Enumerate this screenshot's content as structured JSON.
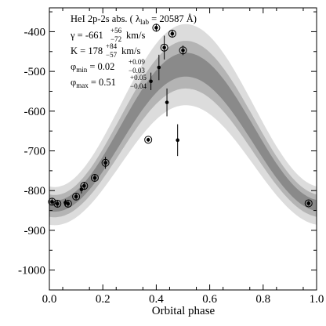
{
  "chart_data": {
    "type": "scatter",
    "xlabel": "Orbital phase",
    "ylabel": "",
    "xlim": [
      0.0,
      1.0
    ],
    "ylim": [
      -1050,
      -340
    ],
    "x_ticks": [
      0.0,
      0.2,
      0.4,
      0.6,
      0.8,
      1.0
    ],
    "x_tick_labels": [
      "0.0",
      "0.2",
      "0.4",
      "0.6",
      "0.8",
      "1.0"
    ],
    "y_ticks": [
      -400,
      -500,
      -600,
      -700,
      -800,
      -900,
      -1000
    ],
    "y_tick_labels": [
      "-400",
      "-500",
      "-600",
      "-700",
      "-800",
      "-900",
      "-1000"
    ],
    "grid": false,
    "annotation": {
      "line1": {
        "main": "HeI 2p-2s abs. ( λ",
        "sub": "lab",
        "rest": " = 20587 Å)"
      },
      "line2": {
        "main": "γ = -661",
        "sup": "+56",
        "sub": "−72",
        "rest": " km/s"
      },
      "line3": {
        "main": "K = 178",
        "sup": "+84",
        "sub": "−57",
        "rest": " km/s"
      },
      "line4": {
        "main": "φ",
        "msub": "min",
        "eq": " = 0.02",
        "sup": "+0.09",
        "sub": "−0.03"
      },
      "line5": {
        "main": "φ",
        "msub": "max",
        "eq": " = 0.51",
        "sup": "+0.05",
        "sub": "−0.04"
      }
    },
    "model": {
      "gamma": -661,
      "K": 178,
      "phi_min": 0.02,
      "phi_max": 0.51,
      "bands": [
        {
          "level": "outer",
          "color": "#dcdcdc",
          "half_width": [
            102,
            48
          ]
        },
        {
          "level": "middle",
          "color": "#b4b4b4",
          "half_width": [
            60,
            28
          ]
        },
        {
          "level": "inner",
          "color": "#8a8a8a",
          "half_width": [
            30,
            14
          ]
        }
      ]
    },
    "points": [
      {
        "x": 0.01,
        "y": -828,
        "err": 8,
        "ring": true
      },
      {
        "x": 0.03,
        "y": -833,
        "err": 8,
        "ring": true
      },
      {
        "x": 0.06,
        "y": -830,
        "err": 8,
        "ring": false
      },
      {
        "x": 0.07,
        "y": -833,
        "err": 8,
        "ring": true
      },
      {
        "x": 0.1,
        "y": -815,
        "err": 8,
        "ring": true
      },
      {
        "x": 0.12,
        "y": -797,
        "err": 10,
        "ring": false
      },
      {
        "x": 0.13,
        "y": -788,
        "err": 10,
        "ring": true
      },
      {
        "x": 0.17,
        "y": -768,
        "err": 8,
        "ring": true
      },
      {
        "x": 0.21,
        "y": -730,
        "err": 15,
        "ring": true
      },
      {
        "x": 0.37,
        "y": -672,
        "err": 5,
        "ring": true
      },
      {
        "x": 0.38,
        "y": -525,
        "err": 22,
        "ring": false
      },
      {
        "x": 0.4,
        "y": -390,
        "err": 10,
        "ring": true
      },
      {
        "x": 0.41,
        "y": -490,
        "err": 32,
        "ring": false
      },
      {
        "x": 0.43,
        "y": -440,
        "err": 30,
        "ring": true
      },
      {
        "x": 0.44,
        "y": -578,
        "err": 35,
        "ring": false
      },
      {
        "x": 0.46,
        "y": -405,
        "err": 10,
        "ring": true
      },
      {
        "x": 0.48,
        "y": -673,
        "err": 40,
        "ring": false
      },
      {
        "x": 0.5,
        "y": -447,
        "err": 12,
        "ring": true
      },
      {
        "x": 0.97,
        "y": -832,
        "err": 6,
        "ring": true
      }
    ]
  }
}
